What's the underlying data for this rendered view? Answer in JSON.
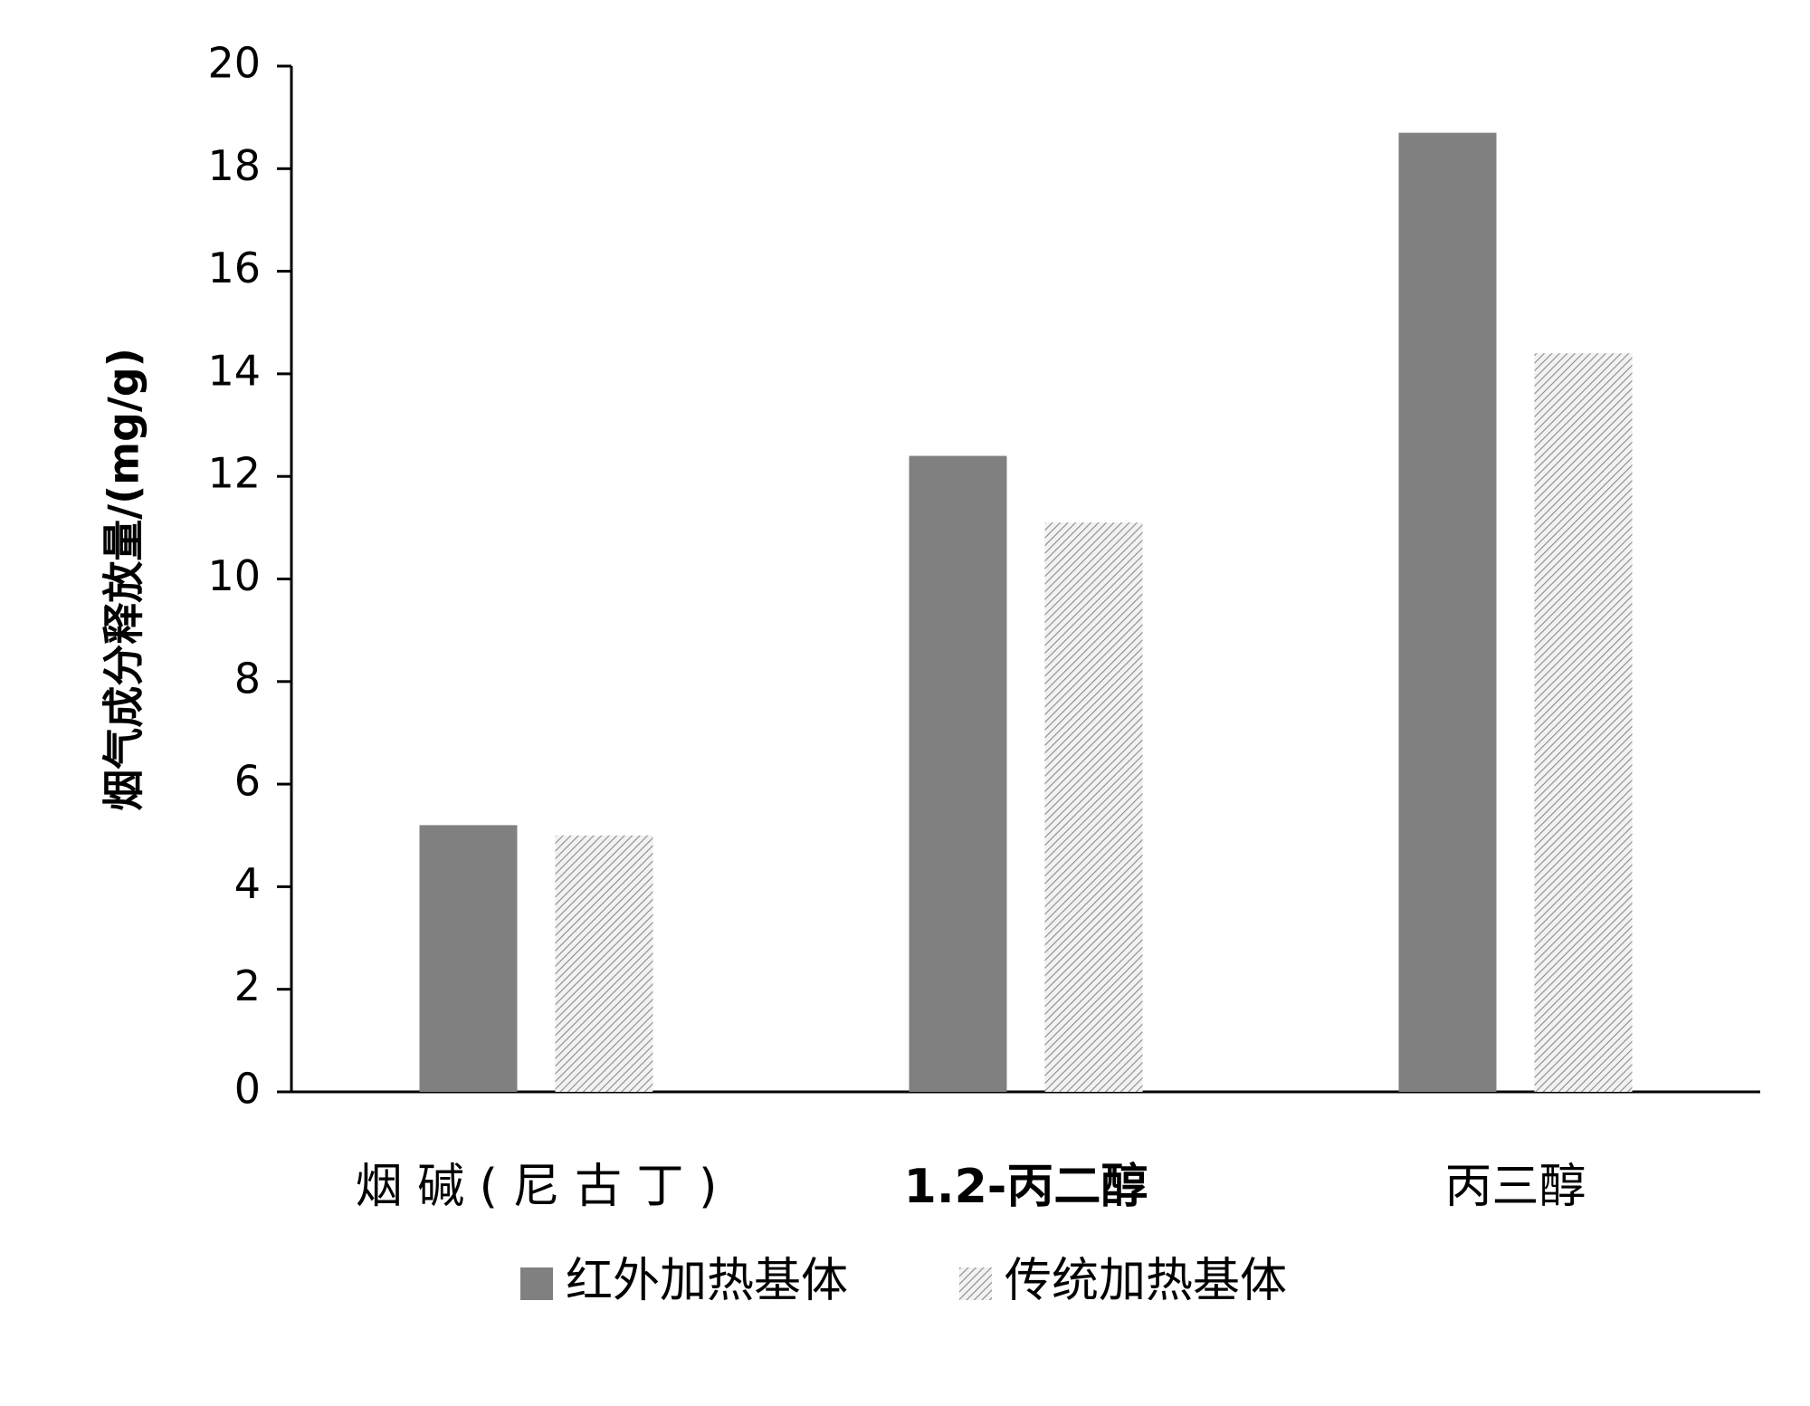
{
  "chart_data": {
    "type": "bar",
    "categories": [
      "烟 碱 ( 尼 古 丁 )",
      "1.2-丙二醇",
      "丙三醇"
    ],
    "series": [
      {
        "name": "红外加热基体",
        "values": [
          5.2,
          12.4,
          18.7
        ],
        "color": "#808080",
        "pattern": "solid"
      },
      {
        "name": "传统加热基体",
        "values": [
          5.0,
          11.1,
          14.4
        ],
        "color": "#808080",
        "pattern": "diagonal-hatch"
      }
    ],
    "ylabel": "烟气成分释放量/(mg/g)",
    "ylim": [
      0,
      20
    ],
    "yticks": [
      0,
      2,
      4,
      6,
      8,
      10,
      12,
      14,
      16,
      18,
      20
    ],
    "grid": false,
    "legend_position": "bottom"
  }
}
